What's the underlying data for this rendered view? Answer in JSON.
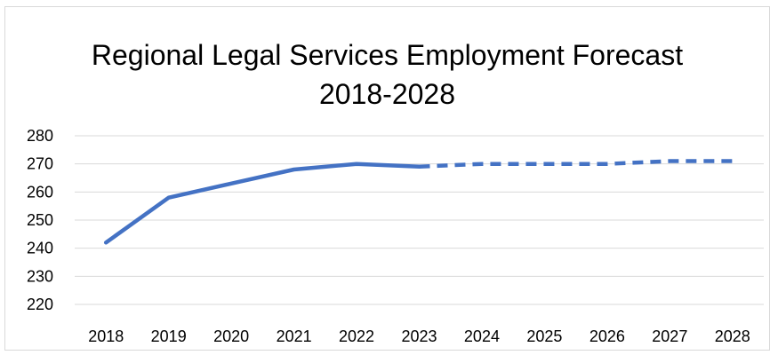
{
  "chart_data": {
    "type": "line",
    "title": "Regional Legal Services Employment Forecast",
    "subtitle": "2018-2028",
    "xlabel": "",
    "ylabel": "",
    "categories": [
      "2018",
      "2019",
      "2020",
      "2021",
      "2022",
      "2023",
      "2024",
      "2025",
      "2026",
      "2027",
      "2028"
    ],
    "series": [
      {
        "values": [
          242,
          258,
          263,
          268,
          270,
          269,
          null,
          null,
          null,
          null,
          null
        ],
        "style": "solid",
        "color": "#4472c4"
      },
      {
        "values": [
          null,
          null,
          null,
          null,
          null,
          269,
          270,
          270,
          270,
          271,
          271
        ],
        "style": "dashed",
        "color": "#4472c4"
      }
    ],
    "ylim": [
      220,
      280
    ],
    "yticks": [
      220,
      230,
      240,
      250,
      260,
      270,
      280
    ],
    "grid": true,
    "gridColor": "#d9d9d9",
    "legend": "none"
  }
}
